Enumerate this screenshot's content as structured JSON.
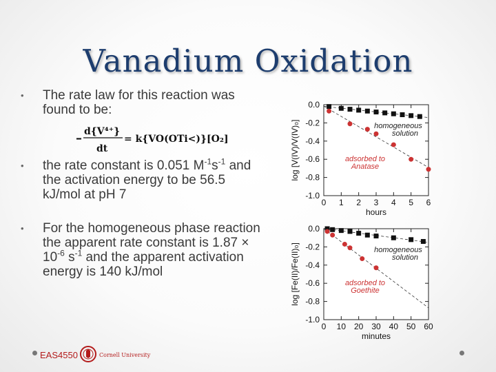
{
  "slide": {
    "title": "Vanadium Oxidation",
    "bullet_char": "•",
    "bullet1": "The rate law for this reaction was found to be:",
    "equation": {
      "numerator": "d{V⁴⁺}",
      "denominator": "dt",
      "rhs": "= k{VO(OTi<)}[O₂]"
    },
    "bullet2": {
      "pre": "the rate constant is 0.051 M",
      "sup1": "-1",
      "mid": "s",
      "sup2": "-1",
      "post": " and the activation energy to be 56.5 kJ/mol at pH 7"
    },
    "bullet3": {
      "pre": "For the homogeneous phase reaction the apparent rate constant is 1.87 × 10",
      "sup1": "-6",
      "mid": " s",
      "sup2": "-1",
      "post": " and the apparent activation energy is 140 kJ/mol"
    }
  },
  "chart_data": [
    {
      "type": "scatter",
      "ylabel": "log [V(IV)/V(IV)₀]",
      "xlabel": "hours",
      "xticks": [
        "0",
        "1",
        "2",
        "3",
        "4",
        "5",
        "6"
      ],
      "yticks": [
        "0.0",
        "-0.2",
        "-0.4",
        "-0.6",
        "-0.8",
        "-1.0"
      ],
      "xlim": [
        0,
        6
      ],
      "ylim": [
        -1.0,
        0.0
      ],
      "series": [
        {
          "name": "homogeneous solution",
          "marker": "square",
          "color": "#111111",
          "x": [
            0.3,
            1.0,
            1.5,
            2.0,
            2.5,
            3.0,
            3.5,
            4.0,
            4.5,
            5.0,
            5.5
          ],
          "y": [
            -0.02,
            -0.04,
            -0.05,
            -0.06,
            -0.07,
            -0.08,
            -0.09,
            -0.1,
            -0.11,
            -0.12,
            -0.13
          ]
        },
        {
          "name": "adsorbed to Anatase",
          "marker": "circle",
          "color": "#cc3333",
          "x": [
            0.3,
            1.5,
            2.5,
            3.0,
            4.0,
            5.0,
            6.0
          ],
          "y": [
            -0.07,
            -0.21,
            -0.27,
            -0.32,
            -0.44,
            -0.6,
            -0.71
          ]
        }
      ],
      "annotations": [
        {
          "text1": "homogeneous",
          "text2": "solution",
          "color": "#222222"
        },
        {
          "text1": "adsorbed to",
          "text2": "Anatase",
          "color": "#cc3333"
        }
      ]
    },
    {
      "type": "scatter",
      "ylabel": "log [Fe(II)/Fe(II)₀]",
      "xlabel": "minutes",
      "xticks": [
        "0",
        "10",
        "20",
        "30",
        "40",
        "50",
        "60"
      ],
      "yticks": [
        "0.0",
        "-0.2",
        "-0.4",
        "-0.6",
        "-0.8",
        "-1.0"
      ],
      "xlim": [
        0,
        60
      ],
      "ylim": [
        -1.0,
        0.0
      ],
      "series": [
        {
          "name": "homogeneous solution",
          "marker": "square",
          "color": "#111111",
          "x": [
            2,
            5,
            10,
            15,
            20,
            25,
            30,
            40,
            50,
            57
          ],
          "y": [
            0.0,
            -0.01,
            -0.02,
            -0.03,
            -0.05,
            -0.07,
            -0.08,
            -0.1,
            -0.12,
            -0.14
          ]
        },
        {
          "name": "adsorbed to Goethite",
          "marker": "circle",
          "color": "#cc3333",
          "x": [
            2,
            5,
            12,
            15,
            22,
            30
          ],
          "y": [
            -0.03,
            -0.07,
            -0.17,
            -0.21,
            -0.33,
            -0.43
          ]
        }
      ],
      "annotations": [
        {
          "text1": "homogeneous",
          "text2": "solution",
          "color": "#222222"
        },
        {
          "text1": "adsorbed to",
          "text2": "Goethite",
          "color": "#cc3333"
        }
      ]
    }
  ],
  "footer": {
    "course": "EAS4550",
    "university": "Cornell University",
    "colors": {
      "cornell_red": "#b31b1b"
    }
  }
}
